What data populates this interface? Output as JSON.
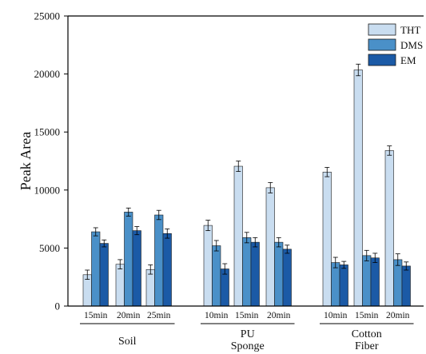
{
  "chart_data": {
    "type": "bar",
    "ylabel": "Peak Area",
    "ylim": [
      0,
      25000
    ],
    "yticks": [
      0,
      5000,
      10000,
      15000,
      20000,
      25000
    ],
    "legend_position": "top-right",
    "series": [
      {
        "name": "THT",
        "color": "#c9ddf0"
      },
      {
        "name": "DMS",
        "color": "#4a90c8"
      },
      {
        "name": "EM",
        "color": "#1b5aa6"
      }
    ],
    "groups": [
      {
        "label_lines": [
          "Soil"
        ],
        "categories": [
          {
            "label": "15min",
            "values": [
              2700,
              6400,
              5400
            ],
            "errors": [
              400,
              350,
              300
            ]
          },
          {
            "label": "20min",
            "values": [
              3600,
              8100,
              6500
            ],
            "errors": [
              400,
              350,
              350
            ]
          },
          {
            "label": "25min",
            "values": [
              3150,
              7850,
              6250
            ],
            "errors": [
              400,
              400,
              400
            ]
          }
        ]
      },
      {
        "label_lines": [
          "PU",
          "Sponge"
        ],
        "categories": [
          {
            "label": "10min",
            "values": [
              6950,
              5200,
              3200
            ],
            "errors": [
              450,
              450,
              450
            ]
          },
          {
            "label": "15min",
            "values": [
              12050,
              5900,
              5500
            ],
            "errors": [
              450,
              450,
              400
            ]
          },
          {
            "label": "20min",
            "values": [
              10200,
              5500,
              4900
            ],
            "errors": [
              450,
              400,
              350
            ]
          }
        ]
      },
      {
        "label_lines": [
          "Cotton",
          "Fiber"
        ],
        "categories": [
          {
            "label": "10min",
            "values": [
              11550,
              3750,
              3550
            ],
            "errors": [
              400,
              450,
              300
            ]
          },
          {
            "label": "15min",
            "values": [
              20350,
              4350,
              4150
            ],
            "errors": [
              500,
              450,
              400
            ]
          },
          {
            "label": "20min",
            "values": [
              13400,
              4000,
              3450
            ],
            "errors": [
              400,
              500,
              350
            ]
          }
        ]
      }
    ]
  }
}
